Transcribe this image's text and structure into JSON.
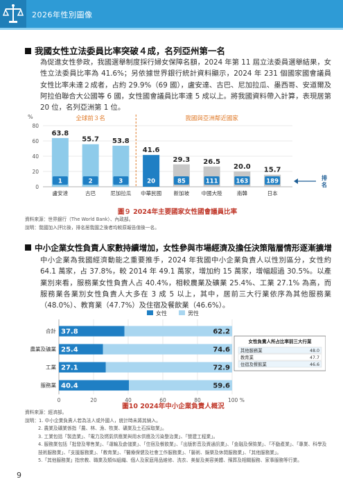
{
  "header": {
    "title": "2026年性別圖像"
  },
  "section1": {
    "heading": "我國女性立法委員比率突破４成，名列亞州第一名",
    "paragraph": "為促進女性參政，我國選舉制度採行婦女保障名額，2024 年第 11 屆立法委員選舉結果，女性立法委員比率為 41.6%；另依據世界銀行統計資料顯示，2024 年 231 個國家國會議員女性比率未達２成者，占約 29.9%（69 國），盧安達、古巴、尼加拉瓜、墨西哥、安道爾及阿拉伯聯合大公國等 6 國，女性國會議員比率達 5 成以上。將我國資料帶入計算，表現居第 20 位，名列亞洲第 1 位。"
  },
  "chart1_labels": {
    "y_unit": "%",
    "group_top": "全球前３名",
    "group_asia": "我國與亞洲鄰近國家",
    "rank_label": "排名"
  },
  "chart_data": [
    {
      "type": "bar",
      "categories": [
        "盧安達",
        "古巴",
        "尼加拉瓜",
        "中華民國",
        "新加坡",
        "中國大陸",
        "南韓",
        "日本"
      ],
      "values": [
        63.8,
        55.7,
        53.8,
        41.6,
        29.3,
        26.5,
        20.0,
        15.7
      ],
      "value_labels": [
        "63.8",
        "55.7",
        "53.8",
        "41.6",
        "29.3",
        "26.5",
        "20.0",
        "15.7"
      ],
      "ranks": [
        "1",
        "2",
        "3",
        "20",
        "85",
        "111",
        "163",
        "189"
      ],
      "ylim": [
        0,
        80
      ],
      "yticks": [
        "0",
        "20",
        "40",
        "60",
        "80"
      ],
      "title": "圖９ 2024年主要國家女性國會議員比率",
      "colors": {
        "top": "#8ecbea",
        "taiwan": "#1f7fc4",
        "others": "#c7c7c7",
        "rank_box": "#1f7fc4"
      }
    },
    {
      "type": "bar",
      "orientation": "horizontal-stacked",
      "categories": [
        "合計",
        "農業及礦業",
        "工業",
        "服務業"
      ],
      "series": [
        {
          "name": "女性",
          "values": [
            37.8,
            25.4,
            27.1,
            40.4
          ],
          "labels": [
            "37.8",
            "25.4",
            "27.1",
            "40.4"
          ]
        },
        {
          "name": "男性",
          "values": [
            62.2,
            74.6,
            72.9,
            59.6
          ],
          "labels": [
            "62.2",
            "74.6",
            "72.9",
            "59.6"
          ]
        }
      ],
      "xlim": [
        0,
        100
      ],
      "xticks": [
        "0",
        "20",
        "40",
        "60",
        "80",
        "100 %"
      ],
      "title": "圖10 2024年中小企業負責人概況",
      "colors": {
        "female": "#1f7fc4",
        "male": "#a9d6f0"
      }
    }
  ],
  "chart1_source": [
    "資料來源：世界銀行（The World Bank）、內政部。",
    "說明：我國加入評比後，排名居我國之後者均較原報告值後一名。"
  ],
  "section2": {
    "heading": "中小企業女性負責人家數持續增加，女性參與市場經濟及擔任決策階層情形逐漸擴增",
    "paragraph": "中小企業為我國經濟動能之重要推手，2024 年我國中小企業負責人以性別區分，女性約 64.1 萬家，占 37.8%，較 2014 年 49.1 萬家，增加約 15 萬家，增幅超過 30.5%。以產業別來看，服務業女性負責人占 40.4%，相較農業及礦業 25.4%、工業 27.1% 為高，而服務業各業別女性負責人大多在 3 成 5 以上，其中，居前三大行業依序為其他服務業（48.0%）、教育業（47.7%）及住宿及餐飲業（46.6%）。"
  },
  "top3_table": {
    "title": "女性負責人所占比率前三大行業",
    "rows": [
      {
        "name": "其他服務業",
        "value": "48.0"
      },
      {
        "name": "教育業",
        "value": "47.7"
      },
      {
        "name": "住宿及餐飲業",
        "value": "46.6"
      }
    ]
  },
  "chart2_notes": [
    "資料來源：經濟部。",
    "說明：1. 中小企業負責人若為法人或外國人，統計時未將其納入。",
    "2. 農業及礦業係指「農、林、漁、牧業、礦業及土石採取業」。",
    "3. 工業包括「製造業」、「電力及燃氣供應業與用水供應及污染整治業」、「營建工程業」。",
    "4. 服務業包括「批發及零售業」、「運輸及倉儲業」、「住宿及餐飲業」、「出版影音及資通訊業」、「金融及保險業」、「不動產業」、「專業、科學及技術服務業」、「支援服務業」、「教育業」、「醫療保健及社會工作服務業」、「藝術、娛樂及休閒服務業」、「其他服務業」。",
    "5.「其他服務業」指宗教、職業及類似組織、個人及家庭用品維修、洗衣、美髮及美容美體、殯葬及相關服務、家事服務等行業。"
  ],
  "page_number": "9"
}
